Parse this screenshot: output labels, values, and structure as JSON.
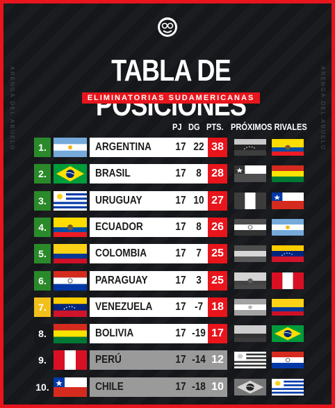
{
  "title": "TABLA DE POSICIONES",
  "subtitle": "ELIMINATORIAS SUDAMERICANAS",
  "side_text": "ARENGA DEL ABUELO",
  "headers": {
    "pj": "PJ",
    "dg": "DG",
    "pts": "PTS.",
    "rivales": "PRÓXIMOS RIVALES"
  },
  "colors": {
    "accent": "#e8151c",
    "background": "#15171b",
    "green": "#2a8a2a",
    "yellow": "#f2c01b",
    "gray": "#9a9a9a"
  },
  "rows": [
    {
      "pos": "1.",
      "team": "ARGENTINA",
      "pj": "17",
      "dg": "22",
      "pts": "38",
      "flag": "argentina-flag",
      "rivals": [
        "venezuela-flag-grayscale",
        "ecuador-flag"
      ]
    },
    {
      "pos": "2.",
      "team": "BRASIL",
      "pj": "17",
      "dg": "8",
      "pts": "28",
      "flag": "brazil-flag",
      "rivals": [
        "chile-flag-grayscale",
        "bolivia-flag"
      ]
    },
    {
      "pos": "3.",
      "team": "URUGUAY",
      "pj": "17",
      "dg": "10",
      "pts": "27",
      "flag": "uruguay-flag",
      "rivals": [
        "peru-flag-grayscale",
        "chile-flag"
      ]
    },
    {
      "pos": "4.",
      "team": "ECUADOR",
      "pj": "17",
      "dg": "8",
      "pts": "26",
      "flag": "ecuador-flag",
      "rivals": [
        "paraguay-flag-grayscale",
        "argentina-flag"
      ]
    },
    {
      "pos": "5.",
      "team": "COLOMBIA",
      "pj": "17",
      "dg": "7",
      "pts": "25",
      "flag": "colombia-flag",
      "rivals": [
        "bolivia-flag-grayscale",
        "venezuela-flag"
      ]
    },
    {
      "pos": "6.",
      "team": "PARAGUAY",
      "pj": "17",
      "dg": "3",
      "pts": "25",
      "flag": "paraguay-flag",
      "rivals": [
        "ecuador-flag-grayscale",
        "peru-flag"
      ]
    },
    {
      "pos": "7.",
      "team": "VENEZUELA",
      "pj": "17",
      "dg": "-7",
      "pts": "18",
      "flag": "venezuela-flag",
      "rivals": [
        "argentina-flag-grayscale",
        "colombia-flag"
      ]
    },
    {
      "pos": "8.",
      "team": "BOLIVIA",
      "pj": "17",
      "dg": "-19",
      "pts": "17",
      "flag": "bolivia-flag",
      "rivals": [
        "colombia-flag-grayscale",
        "brazil-flag"
      ]
    },
    {
      "pos": "9.",
      "team": "PERÚ",
      "pj": "17",
      "dg": "-14",
      "pts": "12",
      "flag": "peru-flag",
      "rivals": [
        "uruguay-flag-grayscale",
        "paraguay-flag"
      ]
    },
    {
      "pos": "10.",
      "team": "CHILE",
      "pj": "17",
      "dg": "-18",
      "pts": "10",
      "flag": "chile-flag",
      "rivals": [
        "brazil-flag-grayscale",
        "uruguay-flag"
      ]
    }
  ]
}
